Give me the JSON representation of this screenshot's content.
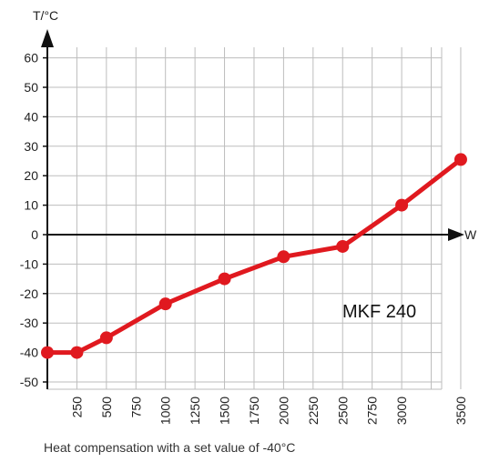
{
  "chart_data": {
    "type": "line",
    "ylabel": "T/°C",
    "xlabel": "W",
    "annotation": "MKF 240",
    "caption": "Heat compensation with a set value of -40°C",
    "xlim": [
      0,
      3625
    ],
    "ylim": [
      -52,
      65
    ],
    "x_ticks": [
      250,
      500,
      750,
      1000,
      1250,
      1500,
      1750,
      2000,
      2250,
      2500,
      2750,
      3000,
      3500
    ],
    "y_ticks": [
      60,
      50,
      40,
      30,
      20,
      10,
      0,
      -10,
      -20,
      -30,
      -40,
      -50
    ],
    "grid": true,
    "series_color": "#e0191f",
    "series": [
      {
        "x": [
          0,
          250,
          500,
          1000,
          1500,
          2000,
          2500,
          3000,
          3500
        ],
        "y": [
          -40,
          -40,
          -35,
          -23.5,
          -15,
          -7.5,
          -4,
          10,
          25.5
        ]
      }
    ]
  }
}
